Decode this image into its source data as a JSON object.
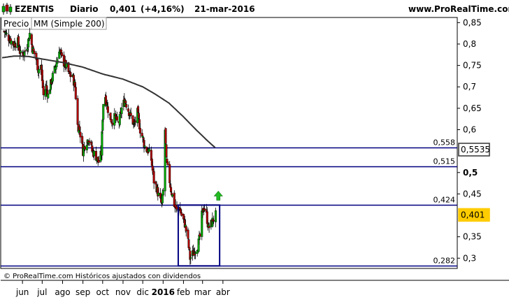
{
  "header": {
    "symbol": "EZENTIS",
    "period": "Diario",
    "last": "0,401",
    "change": "(+4,16%)",
    "date": "21-mar-2016",
    "site": "www.ProRealTime.com"
  },
  "legend": {
    "price_label": "Precio",
    "ma_label": "MM (Simple 200)"
  },
  "footer": {
    "text": "© ProRealTime.com  Históricos ajustados con dividendos"
  },
  "colors": {
    "up": "#00aa00",
    "down": "#b00000",
    "line": "#000080",
    "ma": "#333333",
    "arrow": "#22bb22"
  },
  "chart_data": {
    "type": "candlestick",
    "title": "EZENTIS  Diario",
    "ylim": [
      0.276,
      0.862
    ],
    "y_ticks": [
      {
        "v": 0.85,
        "label": "0,85"
      },
      {
        "v": 0.8,
        "label": "0,8"
      },
      {
        "v": 0.75,
        "label": "0,75"
      },
      {
        "v": 0.7,
        "label": "0,7"
      },
      {
        "v": 0.65,
        "label": "0,65"
      },
      {
        "v": 0.6,
        "label": "0,6"
      },
      {
        "v": 0.5,
        "label": "0,5"
      },
      {
        "v": 0.45,
        "label": "0,45"
      },
      {
        "v": 0.35,
        "label": "0,35"
      },
      {
        "v": 0.3,
        "label": "0,3"
      }
    ],
    "x_ticks": [
      {
        "date": "2015-06-01",
        "label": "jun"
      },
      {
        "date": "2015-07-01",
        "label": "jul"
      },
      {
        "date": "2015-08-01",
        "label": "ago"
      },
      {
        "date": "2015-09-01",
        "label": "sep"
      },
      {
        "date": "2015-10-01",
        "label": "oct"
      },
      {
        "date": "2015-11-01",
        "label": "nov"
      },
      {
        "date": "2015-12-01",
        "label": "dic"
      },
      {
        "date": "2016-01-01",
        "label": "2016",
        "bold": true
      },
      {
        "date": "2016-02-01",
        "label": "feb"
      },
      {
        "date": "2016-03-01",
        "label": "mar"
      },
      {
        "date": "2016-04-01",
        "label": "abr"
      }
    ],
    "price_path": [
      {
        "date": "2015-05-04",
        "y": 0.83
      },
      {
        "date": "2015-05-11",
        "y": 0.815
      },
      {
        "date": "2015-05-18",
        "y": 0.8
      },
      {
        "date": "2015-05-25",
        "y": 0.805
      },
      {
        "date": "2015-05-29",
        "y": 0.775
      },
      {
        "date": "2015-06-04",
        "y": 0.78
      },
      {
        "date": "2015-06-09",
        "y": 0.8
      },
      {
        "date": "2015-06-12",
        "y": 0.825
      },
      {
        "date": "2015-06-16",
        "y": 0.79
      },
      {
        "date": "2015-06-22",
        "y": 0.765
      },
      {
        "date": "2015-06-25",
        "y": 0.74
      },
      {
        "date": "2015-06-29",
        "y": 0.75
      },
      {
        "date": "2015-07-03",
        "y": 0.68
      },
      {
        "date": "2015-07-07",
        "y": 0.7
      },
      {
        "date": "2015-07-10",
        "y": 0.68
      },
      {
        "date": "2015-07-16",
        "y": 0.72
      },
      {
        "date": "2015-07-22",
        "y": 0.75
      },
      {
        "date": "2015-07-27",
        "y": 0.79
      },
      {
        "date": "2015-08-01",
        "y": 0.76
      },
      {
        "date": "2015-08-06",
        "y": 0.75
      },
      {
        "date": "2015-08-11",
        "y": 0.73
      },
      {
        "date": "2015-08-17",
        "y": 0.72
      },
      {
        "date": "2015-08-20",
        "y": 0.7
      },
      {
        "date": "2015-08-24",
        "y": 0.61
      },
      {
        "date": "2015-08-27",
        "y": 0.6
      },
      {
        "date": "2015-09-01",
        "y": 0.55
      },
      {
        "date": "2015-09-05",
        "y": 0.57
      },
      {
        "date": "2015-09-10",
        "y": 0.58
      },
      {
        "date": "2015-09-15",
        "y": 0.55
      },
      {
        "date": "2015-09-20",
        "y": 0.54
      },
      {
        "date": "2015-09-25",
        "y": 0.525
      },
      {
        "date": "2015-09-29",
        "y": 0.545
      },
      {
        "date": "2015-10-01",
        "y": 0.63
      },
      {
        "date": "2015-10-03",
        "y": 0.695
      },
      {
        "date": "2015-10-06",
        "y": 0.67
      },
      {
        "date": "2015-10-10",
        "y": 0.64
      },
      {
        "date": "2015-10-15",
        "y": 0.62
      },
      {
        "date": "2015-10-20",
        "y": 0.63
      },
      {
        "date": "2015-10-25",
        "y": 0.61
      },
      {
        "date": "2015-10-30",
        "y": 0.65
      },
      {
        "date": "2015-11-04",
        "y": 0.67
      },
      {
        "date": "2015-11-08",
        "y": 0.65
      },
      {
        "date": "2015-11-13",
        "y": 0.63
      },
      {
        "date": "2015-11-18",
        "y": 0.61
      },
      {
        "date": "2015-11-23",
        "y": 0.64
      },
      {
        "date": "2015-11-27",
        "y": 0.6
      },
      {
        "date": "2015-12-01",
        "y": 0.58
      },
      {
        "date": "2015-12-05",
        "y": 0.555
      },
      {
        "date": "2015-12-10",
        "y": 0.55
      },
      {
        "date": "2015-12-14",
        "y": 0.53
      },
      {
        "date": "2015-12-18",
        "y": 0.48
      },
      {
        "date": "2015-12-22",
        "y": 0.465
      },
      {
        "date": "2015-12-26",
        "y": 0.44
      },
      {
        "date": "2015-12-30",
        "y": 0.425
      },
      {
        "date": "2016-01-02",
        "y": 0.47
      },
      {
        "date": "2016-01-04",
        "y": 0.6
      },
      {
        "date": "2016-01-06",
        "y": 0.525
      },
      {
        "date": "2016-01-09",
        "y": 0.5
      },
      {
        "date": "2016-01-13",
        "y": 0.46
      },
      {
        "date": "2016-01-18",
        "y": 0.425
      },
      {
        "date": "2016-01-22",
        "y": 0.41
      },
      {
        "date": "2016-01-26",
        "y": 0.42
      },
      {
        "date": "2016-01-29",
        "y": 0.4
      },
      {
        "date": "2016-02-03",
        "y": 0.38
      },
      {
        "date": "2016-02-07",
        "y": 0.35
      },
      {
        "date": "2016-02-11",
        "y": 0.3
      },
      {
        "date": "2016-02-15",
        "y": 0.31
      },
      {
        "date": "2016-02-19",
        "y": 0.32
      },
      {
        "date": "2016-02-23",
        "y": 0.33
      },
      {
        "date": "2016-02-26",
        "y": 0.35
      },
      {
        "date": "2016-02-29",
        "y": 0.4
      },
      {
        "date": "2016-03-03",
        "y": 0.42
      },
      {
        "date": "2016-03-07",
        "y": 0.4
      },
      {
        "date": "2016-03-10",
        "y": 0.37
      },
      {
        "date": "2016-03-14",
        "y": 0.38
      },
      {
        "date": "2016-03-17",
        "y": 0.39
      },
      {
        "date": "2016-03-21",
        "y": 0.401
      }
    ],
    "ma_path": [
      {
        "date": "2015-05-01",
        "y": 0.768
      },
      {
        "date": "2015-05-20",
        "y": 0.772
      },
      {
        "date": "2015-06-10",
        "y": 0.771
      },
      {
        "date": "2015-07-01",
        "y": 0.765
      },
      {
        "date": "2015-08-01",
        "y": 0.757
      },
      {
        "date": "2015-09-01",
        "y": 0.746
      },
      {
        "date": "2015-10-01",
        "y": 0.73
      },
      {
        "date": "2015-11-01",
        "y": 0.718
      },
      {
        "date": "2015-12-01",
        "y": 0.7
      },
      {
        "date": "2015-12-20",
        "y": 0.683
      },
      {
        "date": "2016-01-10",
        "y": 0.662
      },
      {
        "date": "2016-02-01",
        "y": 0.63
      },
      {
        "date": "2016-02-20",
        "y": 0.6
      },
      {
        "date": "2016-03-10",
        "y": 0.572
      },
      {
        "date": "2016-03-21",
        "y": 0.557
      }
    ],
    "levels": [
      {
        "name": "level-0558",
        "v": 0.558,
        "label": "0,558"
      },
      {
        "name": "level-0515",
        "v": 0.515,
        "label": "0,515"
      },
      {
        "name": "level-0424",
        "v": 0.424,
        "label": "0,424"
      },
      {
        "name": "level-0282",
        "v": 0.282,
        "label": "0,282"
      }
    ],
    "axis_badges": [
      {
        "name": "ma-value-badge",
        "v": 0.5535,
        "label": "0,5535",
        "color": "#333333"
      },
      {
        "name": "price-value-badge",
        "v": 0.401,
        "label": "0,401",
        "color": "#ffcc00"
      }
    ],
    "range_box": {
      "start": "2016-01-24",
      "end": "2016-03-27",
      "low": 0.282,
      "high": 0.424
    },
    "breakout_arrow": {
      "date": "2016-03-25",
      "v": 0.445
    }
  }
}
